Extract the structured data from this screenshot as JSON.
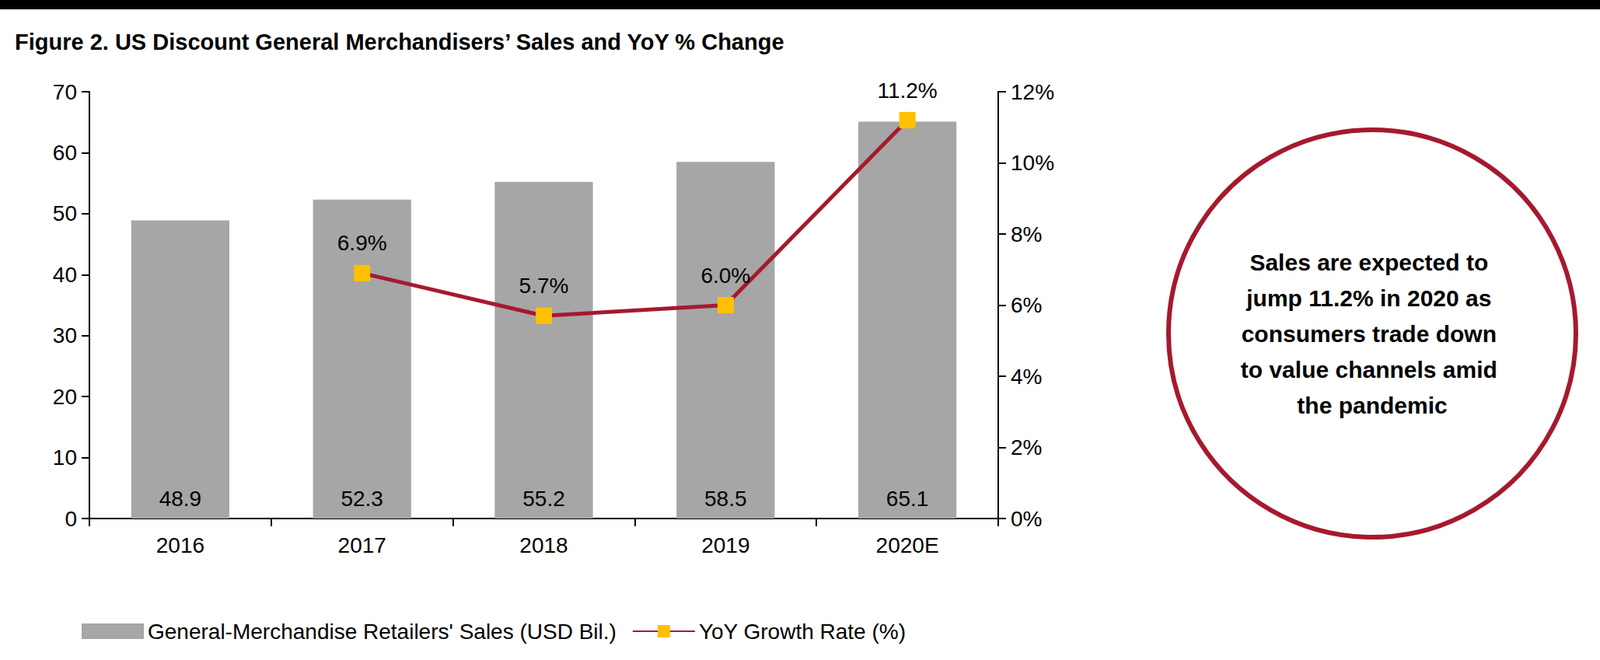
{
  "chart_data": {
    "type": "bar",
    "title": "Figure 2. US Discount General Merchandisers’ Sales and YoY % Change",
    "categories": [
      "2016",
      "2017",
      "2018",
      "2019",
      "2020E"
    ],
    "series": [
      {
        "name": "General-Merchandise Retailers' Sales (USD Bil.)",
        "type": "bar",
        "color": "#a6a6a6",
        "values": [
          48.9,
          52.3,
          55.2,
          58.5,
          65.1
        ]
      },
      {
        "name": "YoY Growth Rate (%)",
        "type": "line",
        "axis": "y2",
        "color": "#a6192e",
        "marker": "square",
        "values": [
          null,
          6.9,
          5.7,
          6.0,
          11.2
        ],
        "value_labels": [
          null,
          "6.9%",
          "5.7%",
          "6.0%",
          "11.2%"
        ]
      }
    ],
    "ylim": [
      0,
      70
    ],
    "yticks": [
      0,
      10,
      20,
      30,
      40,
      50,
      60,
      70
    ],
    "y2lim": [
      0,
      12
    ],
    "y2ticks": [
      {
        "value": 0,
        "label": "0%"
      },
      {
        "value": 2,
        "label": "2%"
      },
      {
        "value": 4,
        "label": "4%"
      },
      {
        "value": 6,
        "label": "6%"
      },
      {
        "value": 8,
        "label": "8%"
      },
      {
        "value": 10,
        "label": "10%"
      },
      {
        "value": 12,
        "label": "12%"
      }
    ],
    "grid": false,
    "legend": "bottom",
    "data_labels": true,
    "annotation": "Sales are expected to jump 11.2% in 2020 as consumers trade down to value channels amid the pandemic"
  }
}
